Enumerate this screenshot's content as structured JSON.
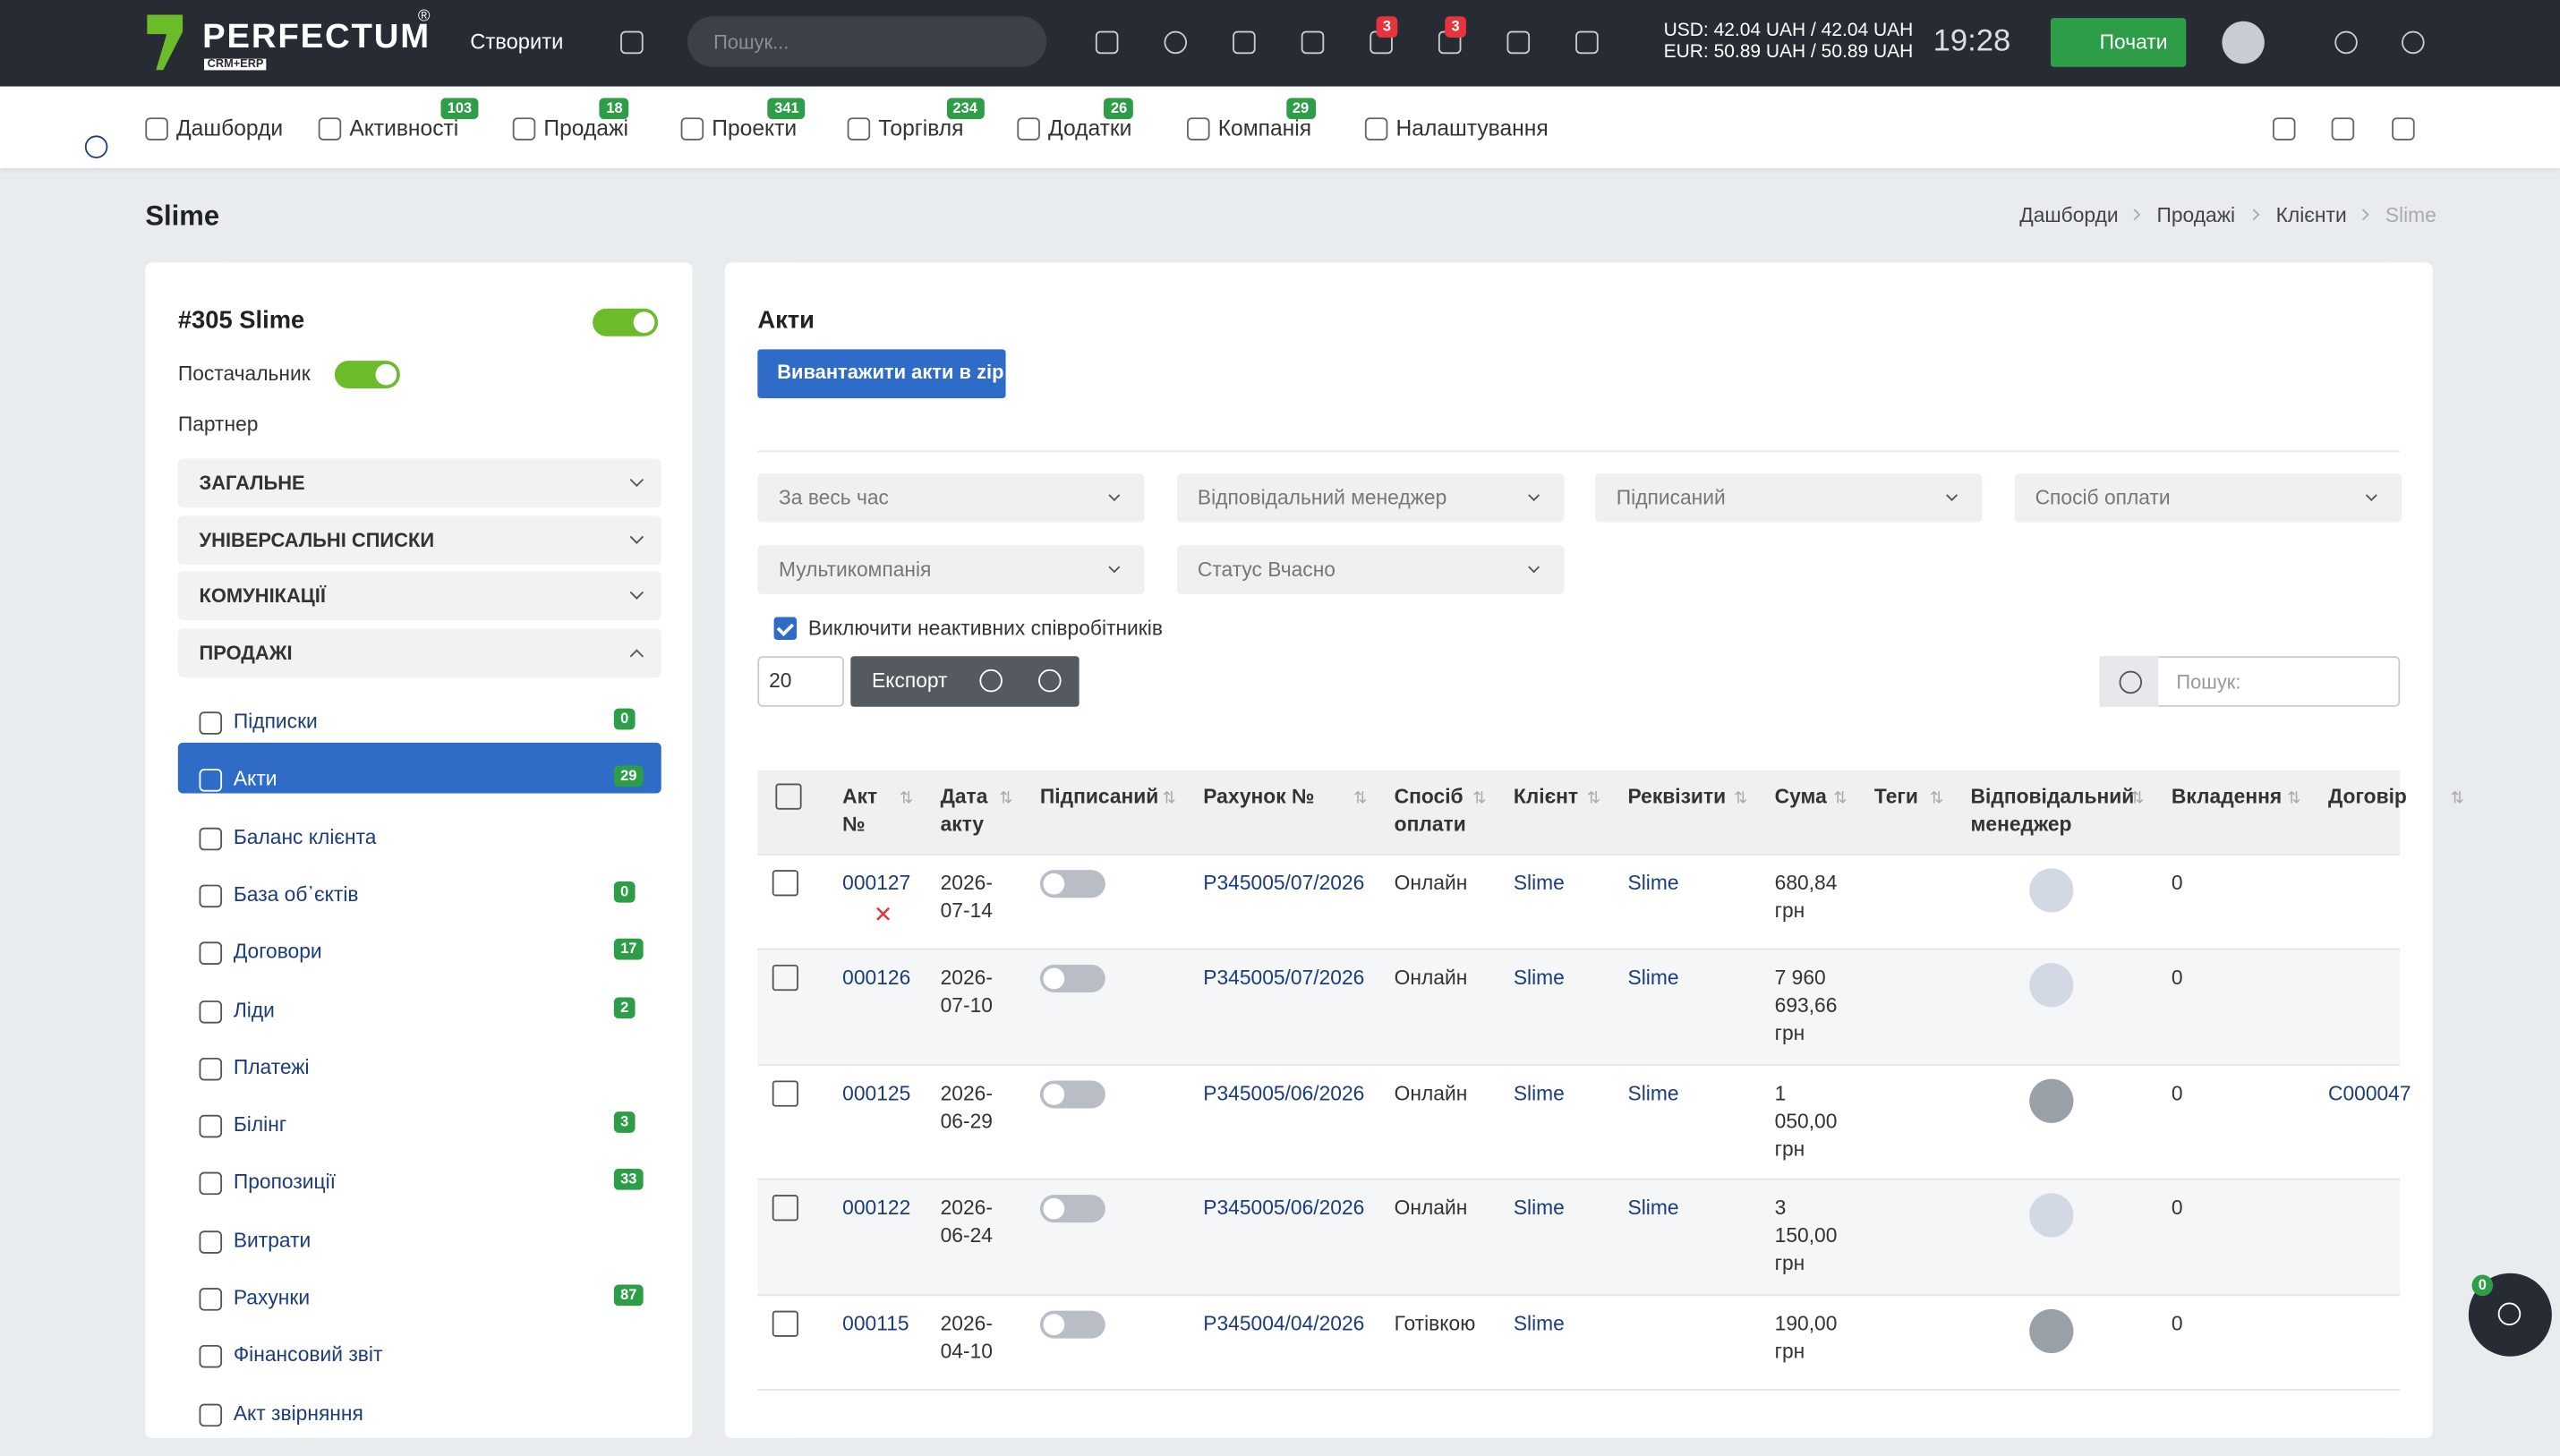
{
  "header": {
    "logo": "PERFECTUM",
    "logo_mark": "®",
    "logo_sub": "CRM+ERP",
    "create": "Створити",
    "search_placeholder": "Пошук...",
    "badges": [
      3,
      3
    ],
    "rates": [
      "USD: 42.04 UAH / 42.04 UAH",
      "EUR: 50.89 UAH / 50.89 UAH"
    ],
    "time": "19:28",
    "start_button": "Почати"
  },
  "nav": [
    {
      "label": "Дашборди"
    },
    {
      "label": "Активності",
      "badge": 103
    },
    {
      "label": "Продажі",
      "badge": 18
    },
    {
      "label": "Проекти",
      "badge": 341
    },
    {
      "label": "Торгівля",
      "badge": 234
    },
    {
      "label": "Додатки",
      "badge": 26
    },
    {
      "label": "Компанія",
      "badge": 29
    },
    {
      "label": "Налаштування"
    }
  ],
  "page": {
    "title": "Slime",
    "breadcrumbs": [
      "Дашборди",
      "Продажі",
      "Клієнти",
      "Slime"
    ]
  },
  "sidebar": {
    "client": "#305 Slime",
    "supplier_label": "Постачальник",
    "partner_label": "Партнер",
    "sections": [
      "ЗАГАЛЬНЕ",
      "УНІВЕРСАЛЬНІ СПИСКИ",
      "КОМУНІКАЦІЇ",
      "ПРОДАЖІ"
    ],
    "items": [
      {
        "label": "Підписки",
        "badge": 0
      },
      {
        "label": "Акти",
        "badge": 29,
        "active": true
      },
      {
        "label": "Баланс клієнта"
      },
      {
        "label": "База об᾽єктів",
        "badge": 0
      },
      {
        "label": "Договори",
        "badge": 17
      },
      {
        "label": "Ліди",
        "badge": 2
      },
      {
        "label": "Платежі"
      },
      {
        "label": "Білінг",
        "badge": 3
      },
      {
        "label": "Пропозиції",
        "badge": 33
      },
      {
        "label": "Витрати"
      },
      {
        "label": "Рахунки",
        "badge": 87
      },
      {
        "label": "Фінансовий звіт"
      },
      {
        "label": "Акт звірняння"
      }
    ]
  },
  "acts": {
    "title": "Акти",
    "zip_button": "Вивантажити акти в zip",
    "filters": [
      "За весь час",
      "Відповідальний менеджер",
      "Підписаний",
      "Спосіб оплати",
      "Мультикомпанія",
      "Статус Вчасно"
    ],
    "exclude_inactive": "Виключити неактивних співробітників",
    "page_size": 20,
    "export": "Експорт",
    "search_placeholder": "Пошук:",
    "columns": [
      "Акт №",
      "Дата акту",
      "Підписаний",
      "Рахунок №",
      "Спосіб оплати",
      "Клієнт",
      "Реквізити",
      "Сума",
      "Теги",
      "Відповідальний менеджер",
      "Вкладення",
      "Договір"
    ],
    "rows": [
      {
        "number": "000127",
        "date": "2026-07-14",
        "invoice": "P345005/07/2026",
        "payment": "Онлайн",
        "client": "Slime",
        "requisites": "Slime",
        "sum": "680,84 грн",
        "attachments": 0
      },
      {
        "number": "000126",
        "date": "2026-07-10",
        "invoice": "P345005/07/2026",
        "payment": "Онлайн",
        "client": "Slime",
        "requisites": "Slime",
        "sum": "7 960 693,66 грн",
        "attachments": 0
      },
      {
        "number": "000125",
        "date": "2026-06-29",
        "invoice": "P345005/06/2026",
        "payment": "Онлайн",
        "client": "Slime",
        "requisites": "Slime",
        "sum": "1 050,00 грн",
        "attachments": 0,
        "contract": "C000047"
      },
      {
        "number": "000122",
        "date": "2026-06-24",
        "invoice": "P345005/06/2026",
        "payment": "Онлайн",
        "client": "Slime",
        "requisites": "Slime",
        "sum": "3 150,00 грн",
        "attachments": 0
      },
      {
        "number": "000115",
        "date": "2026-04-10",
        "invoice": "P345004/04/2026",
        "payment": "Готівкою",
        "client": "Slime",
        "sum": "190,00 грн",
        "attachments": 0
      }
    ]
  },
  "chat_badge": 0
}
